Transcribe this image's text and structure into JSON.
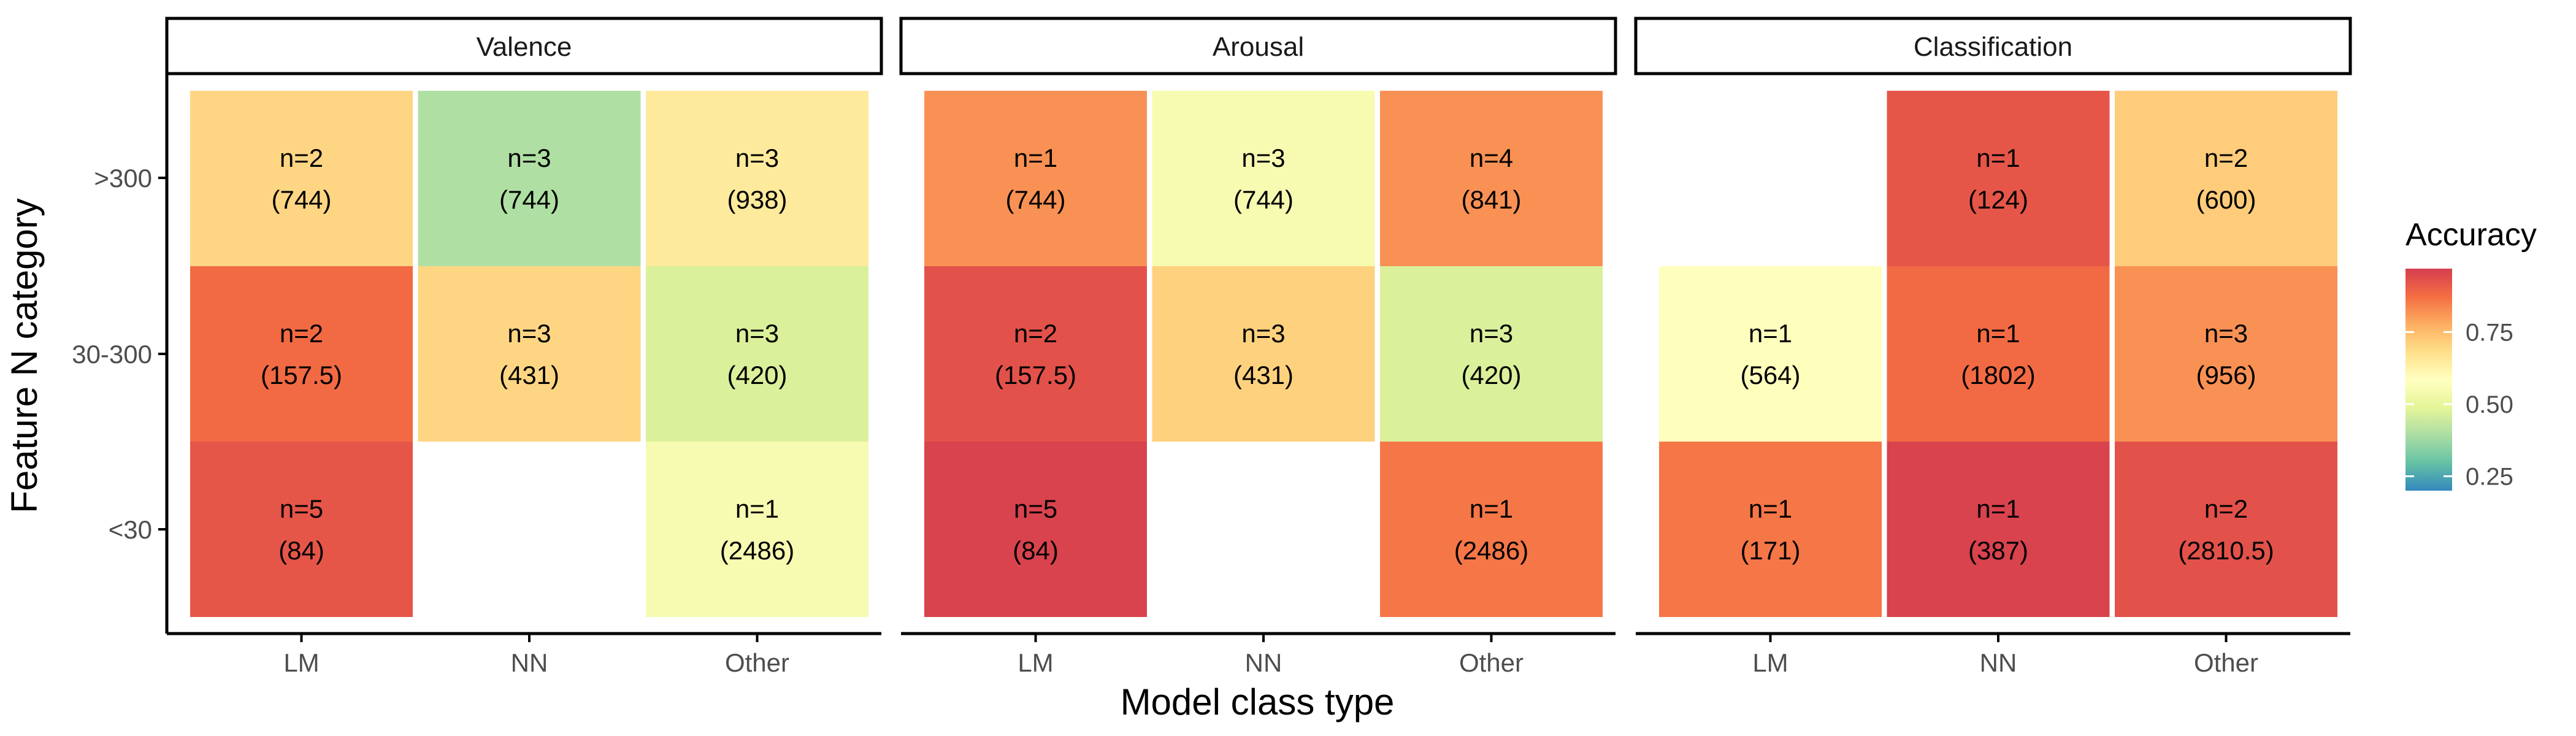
{
  "chart_data": {
    "type": "heatmap",
    "xlabel": "Model class type",
    "ylabel": "Feature N category",
    "x_categories": [
      "LM",
      "NN",
      "Other"
    ],
    "y_categories": [
      ">300",
      "30-300",
      "<30"
    ],
    "legend": {
      "title": "Accuracy",
      "ticks": [
        "0.75",
        "0.50",
        "0.25"
      ],
      "tick_values": [
        0.75,
        0.5,
        0.25
      ],
      "range": [
        0.2,
        0.97
      ],
      "placement": "right"
    },
    "panels": [
      {
        "title": "Valence",
        "cells": [
          {
            "x": "LM",
            "y": ">300",
            "n_label": "n=2",
            "median_label": "(744)",
            "accuracy": 0.7
          },
          {
            "x": "NN",
            "y": ">300",
            "n_label": "n=3",
            "median_label": "(744)",
            "accuracy": 0.4
          },
          {
            "x": "Other",
            "y": ">300",
            "n_label": "n=3",
            "median_label": "(938)",
            "accuracy": 0.65
          },
          {
            "x": "LM",
            "y": "30-300",
            "n_label": "n=2",
            "median_label": "(157.5)",
            "accuracy": 0.88
          },
          {
            "x": "NN",
            "y": "30-300",
            "n_label": "n=3",
            "median_label": "(431)",
            "accuracy": 0.7
          },
          {
            "x": "Other",
            "y": "30-300",
            "n_label": "n=3",
            "median_label": "(420)",
            "accuracy": 0.47
          },
          {
            "x": "LM",
            "y": "<30",
            "n_label": "n=5",
            "median_label": "(84)",
            "accuracy": 0.92
          },
          {
            "x": "Other",
            "y": "<30",
            "n_label": "n=1",
            "median_label": "(2486)",
            "accuracy": 0.55
          }
        ]
      },
      {
        "title": "Arousal",
        "cells": [
          {
            "x": "LM",
            "y": ">300",
            "n_label": "n=1",
            "median_label": "(744)",
            "accuracy": 0.82
          },
          {
            "x": "NN",
            "y": ">300",
            "n_label": "n=3",
            "median_label": "(744)",
            "accuracy": 0.55
          },
          {
            "x": "Other",
            "y": ">300",
            "n_label": "n=4",
            "median_label": "(841)",
            "accuracy": 0.82
          },
          {
            "x": "LM",
            "y": "30-300",
            "n_label": "n=2",
            "median_label": "(157.5)",
            "accuracy": 0.93
          },
          {
            "x": "NN",
            "y": "30-300",
            "n_label": "n=3",
            "median_label": "(431)",
            "accuracy": 0.71
          },
          {
            "x": "Other",
            "y": "30-300",
            "n_label": "n=3",
            "median_label": "(420)",
            "accuracy": 0.47
          },
          {
            "x": "LM",
            "y": "<30",
            "n_label": "n=5",
            "median_label": "(84)",
            "accuracy": 0.96
          },
          {
            "x": "Other",
            "y": "<30",
            "n_label": "n=1",
            "median_label": "(2486)",
            "accuracy": 0.86
          }
        ]
      },
      {
        "title": "Classification",
        "cells": [
          {
            "x": "NN",
            "y": ">300",
            "n_label": "n=1",
            "median_label": "(124)",
            "accuracy": 0.92
          },
          {
            "x": "Other",
            "y": ">300",
            "n_label": "n=2",
            "median_label": "(600)",
            "accuracy": 0.72
          },
          {
            "x": "LM",
            "y": "30-300",
            "n_label": "n=1",
            "median_label": "(564)",
            "accuracy": 0.58
          },
          {
            "x": "NN",
            "y": "30-300",
            "n_label": "n=1",
            "median_label": "(1802)",
            "accuracy": 0.88
          },
          {
            "x": "Other",
            "y": "30-300",
            "n_label": "n=3",
            "median_label": "(956)",
            "accuracy": 0.82
          },
          {
            "x": "LM",
            "y": "<30",
            "n_label": "n=1",
            "median_label": "(171)",
            "accuracy": 0.86
          },
          {
            "x": "NN",
            "y": "<30",
            "n_label": "n=1",
            "median_label": "(387)",
            "accuracy": 0.96
          },
          {
            "x": "Other",
            "y": "<30",
            "n_label": "n=2",
            "median_label": "(2810.5)",
            "accuracy": 0.93
          }
        ]
      }
    ],
    "colors": {
      "scale": [
        "#3288bd",
        "#66c2a5",
        "#abdda4",
        "#e6f598",
        "#ffffbf",
        "#fee08b",
        "#fdae61",
        "#f46d43",
        "#d53e4f"
      ],
      "strip_fill": "#ffffff",
      "strip_border": "#000000",
      "axis": "#000000",
      "tick_label": "#4d4d4d"
    }
  }
}
